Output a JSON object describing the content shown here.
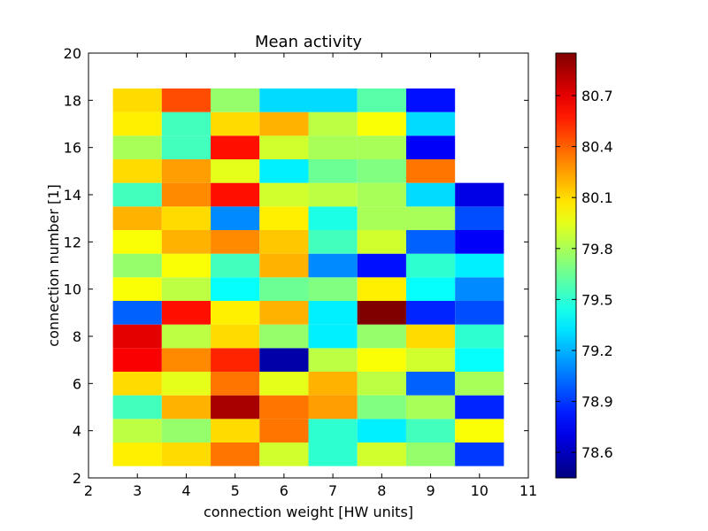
{
  "chart_data": {
    "type": "heatmap",
    "title": "Mean activity",
    "xlabel": "connection weight [HW units]",
    "ylabel": "connection number [1]",
    "xlim": [
      2,
      11
    ],
    "ylim": [
      2,
      20
    ],
    "x_ticks": [
      2,
      3,
      4,
      5,
      6,
      7,
      8,
      9,
      10,
      11
    ],
    "y_ticks": [
      2,
      4,
      6,
      8,
      10,
      12,
      14,
      16,
      18,
      20
    ],
    "x": [
      3,
      4,
      5,
      6,
      7,
      8,
      9,
      10
    ],
    "y": [
      3,
      4,
      5,
      6,
      7,
      8,
      9,
      10,
      11,
      12,
      13,
      14,
      15,
      16,
      17,
      18
    ],
    "colorbar": {
      "vmin": 78.45,
      "vmax": 80.95,
      "ticks": [
        78.6,
        78.9,
        79.2,
        79.5,
        79.8,
        80.1,
        80.4,
        80.7
      ],
      "colormap": "jet"
    },
    "values": [
      [
        80.05,
        80.1,
        80.35,
        79.9,
        79.5,
        79.9,
        79.75,
        78.9
      ],
      [
        79.85,
        79.75,
        80.1,
        80.35,
        79.5,
        79.35,
        79.55,
        80.0
      ],
      [
        79.55,
        80.2,
        80.85,
        80.35,
        80.25,
        79.7,
        79.8,
        78.85
      ],
      [
        80.1,
        79.95,
        80.35,
        79.95,
        80.2,
        79.85,
        79.0,
        79.8
      ],
      [
        80.65,
        80.3,
        80.55,
        78.55,
        79.85,
        80.0,
        79.9,
        79.4
      ],
      [
        80.7,
        79.85,
        80.1,
        79.75,
        79.35,
        79.75,
        80.1,
        79.5
      ],
      [
        79.0,
        80.6,
        80.05,
        80.2,
        79.35,
        80.95,
        78.85,
        78.95
      ],
      [
        80.0,
        79.85,
        79.4,
        79.65,
        79.7,
        80.05,
        79.4,
        79.1
      ],
      [
        79.75,
        80.0,
        79.55,
        80.2,
        79.1,
        78.8,
        79.5,
        79.35
      ],
      [
        80.0,
        80.2,
        80.3,
        80.15,
        79.55,
        79.9,
        79.0,
        78.75
      ],
      [
        80.2,
        80.1,
        79.1,
        80.05,
        79.45,
        79.8,
        79.8,
        78.95
      ],
      [
        79.55,
        80.3,
        80.6,
        79.9,
        79.85,
        79.8,
        79.3,
        78.7
      ],
      [
        80.1,
        80.25,
        79.95,
        79.35,
        79.65,
        79.7,
        80.35,
        null
      ],
      [
        79.8,
        79.55,
        80.6,
        79.9,
        79.8,
        79.8,
        78.75,
        null
      ],
      [
        80.05,
        79.55,
        80.1,
        80.2,
        79.85,
        80.0,
        79.3,
        null
      ],
      [
        80.1,
        80.45,
        79.75,
        79.3,
        79.3,
        79.6,
        78.8,
        null
      ]
    ]
  }
}
